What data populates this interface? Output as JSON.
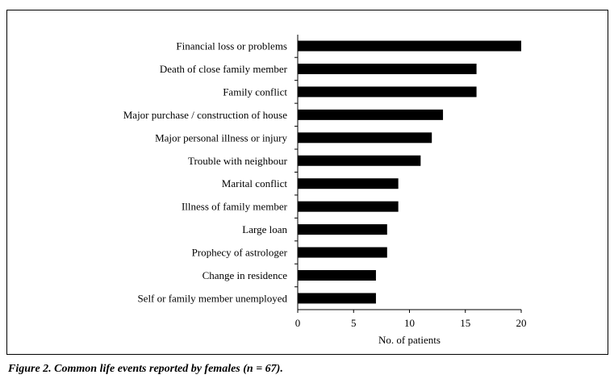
{
  "caption": "Figure 2.  Common life events reported by females (n = 67).",
  "chart_data": {
    "type": "bar",
    "orientation": "horizontal",
    "categories": [
      "Financial loss or problems",
      "Death of close family member",
      "Family conflict",
      "Major purchase / construction of house",
      "Major personal illness or injury",
      "Trouble with neighbour",
      "Marital conflict",
      "Illness of family member",
      "Large loan",
      "Prophecy of astrologer",
      "Change in residence",
      "Self or family member unemployed"
    ],
    "values": [
      20,
      16,
      16,
      13,
      12,
      11,
      9,
      9,
      8,
      8,
      7,
      7
    ],
    "xlabel": "No. of patients",
    "ylabel": "",
    "xlim": [
      0,
      20
    ],
    "xticks": [
      "0",
      "5",
      "10",
      "15",
      "20"
    ],
    "bar_color": "#000000",
    "grid": false
  }
}
